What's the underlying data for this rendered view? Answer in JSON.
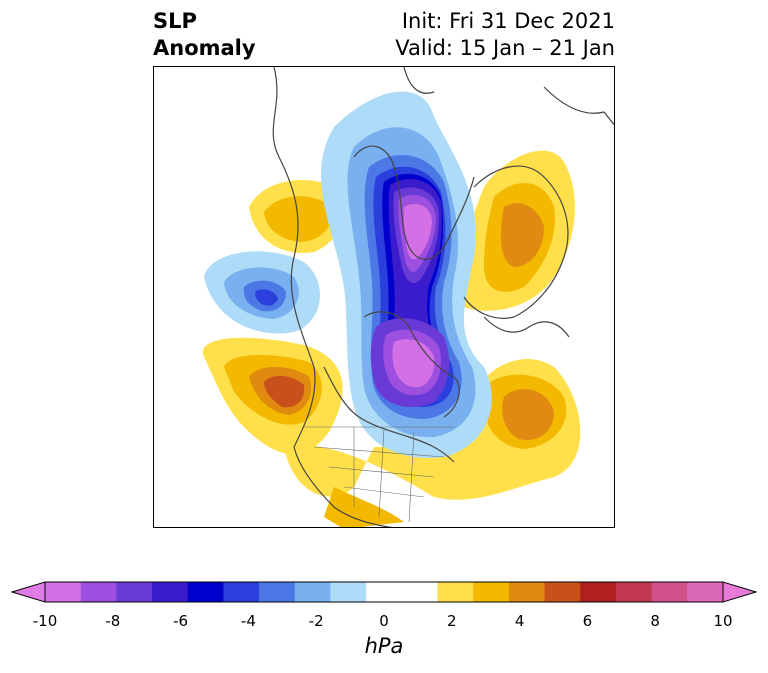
{
  "title": {
    "left_line1": "SLP",
    "left_line2": "Anomaly",
    "right_line1": "Init: Fri 31 Dec 2021",
    "right_line2": "Valid: 15 Jan – 21 Jan"
  },
  "colorbar": {
    "label": "hPa",
    "ticks": [
      "-10",
      "-8",
      "-6",
      "-4",
      "-2",
      "0",
      "2",
      "4",
      "6",
      "8",
      "10"
    ],
    "colors": [
      "#d470e6",
      "#9d4fdf",
      "#6a3ad6",
      "#3a1ccc",
      "#0000cc",
      "#2a3fdb",
      "#4c78e6",
      "#79b0f0",
      "#aedcf8",
      "#ffffff",
      "#ffffff",
      "#ffe04a",
      "#f3b800",
      "#e08a12",
      "#c8501a",
      "#b02020",
      "#c23850",
      "#d0508a",
      "#da68b8"
    ],
    "min_color": "#e07ce8",
    "max_color": "#e87ad8"
  }
}
